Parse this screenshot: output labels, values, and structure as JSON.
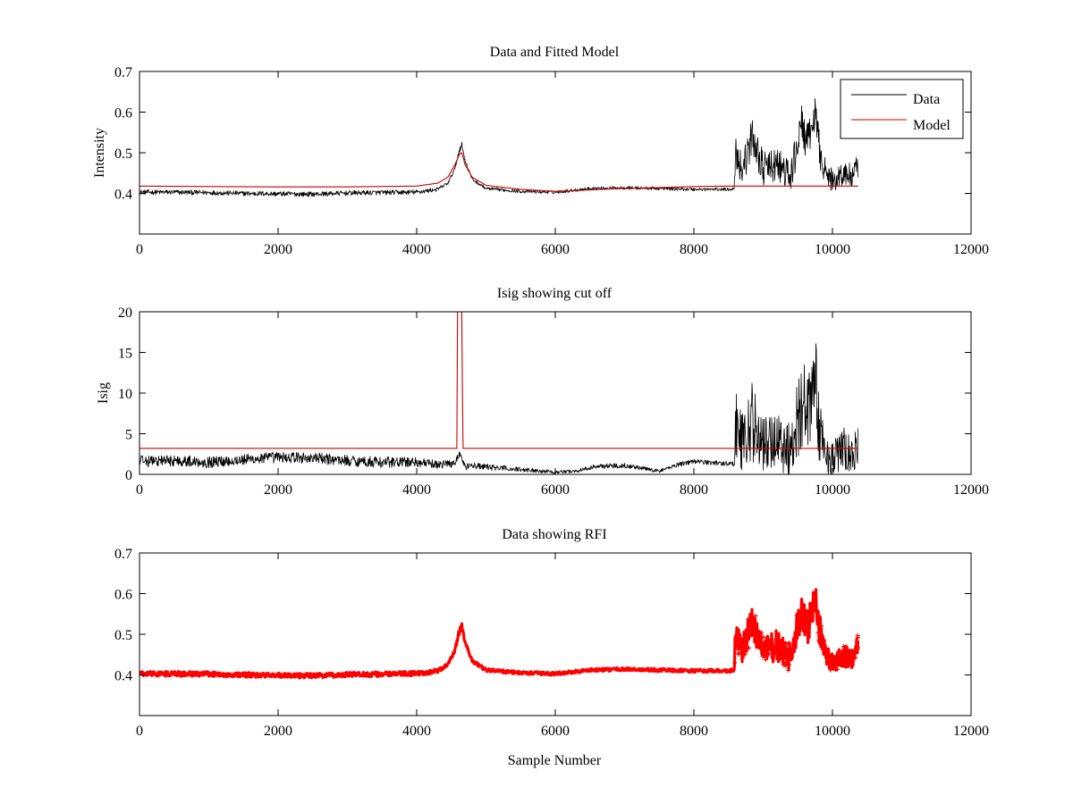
{
  "figure": {
    "background": "#ffffff",
    "colors": {
      "data": "#000000",
      "model": "#cc0000",
      "rfi": "#ff0000"
    }
  },
  "chart_data": [
    {
      "type": "line",
      "title": "Data and Fitted Model",
      "xlabel": "",
      "ylabel": "Intensity",
      "xlim": [
        0,
        12000
      ],
      "ylim": [
        0.3,
        0.7
      ],
      "xticks": [
        "0",
        "2000",
        "4000",
        "6000",
        "8000",
        "10000",
        "12000"
      ],
      "yticks": [
        "0.4",
        "0.5",
        "0.6",
        "0.7"
      ],
      "ytick_values": [
        0.4,
        0.5,
        0.6,
        0.7
      ],
      "grid": false,
      "legend": {
        "position": "top-right",
        "entries": [
          "Data",
          "Model"
        ]
      },
      "series": [
        {
          "name": "Data",
          "color": "#000000",
          "style": "noisy-line",
          "x": [
            0,
            500,
            1000,
            1500,
            2000,
            2500,
            3000,
            3500,
            4000,
            4300,
            4450,
            4550,
            4620,
            4650,
            4700,
            4800,
            5000,
            5500,
            6000,
            6500,
            7000,
            7500,
            8000,
            8500,
            8580,
            8600,
            8700,
            8850,
            9000,
            9200,
            9400,
            9550,
            9650,
            9750,
            9800,
            9900,
            10000,
            10150,
            10300,
            10370
          ],
          "y": [
            0.403,
            0.403,
            0.402,
            0.4,
            0.399,
            0.398,
            0.401,
            0.402,
            0.403,
            0.41,
            0.425,
            0.46,
            0.51,
            0.52,
            0.48,
            0.435,
            0.412,
            0.405,
            0.403,
            0.412,
            0.414,
            0.412,
            0.41,
            0.41,
            0.412,
            0.5,
            0.46,
            0.54,
            0.46,
            0.47,
            0.44,
            0.57,
            0.52,
            0.6,
            0.52,
            0.45,
            0.43,
            0.45,
            0.44,
            0.47
          ],
          "amplitude": [
            0.006,
            0.006,
            0.006,
            0.006,
            0.006,
            0.006,
            0.006,
            0.006,
            0.006,
            0.005,
            0.004,
            0.004,
            0.008,
            0.008,
            0.004,
            0.004,
            0.004,
            0.004,
            0.004,
            0.004,
            0.004,
            0.004,
            0.004,
            0.004,
            0.004,
            0.05,
            0.04,
            0.05,
            0.04,
            0.045,
            0.04,
            0.05,
            0.05,
            0.04,
            0.05,
            0.03,
            0.03,
            0.035,
            0.03,
            0.035
          ]
        },
        {
          "name": "Model",
          "color": "#cc0000",
          "style": "line",
          "x": [
            0,
            1000,
            2000,
            3000,
            4000,
            4300,
            4450,
            4550,
            4620,
            4650,
            4700,
            4800,
            5000,
            5500,
            6000,
            7000,
            8000,
            8500,
            8580,
            9000,
            10000,
            10370
          ],
          "y": [
            0.418,
            0.417,
            0.416,
            0.416,
            0.418,
            0.425,
            0.44,
            0.47,
            0.497,
            0.5,
            0.47,
            0.44,
            0.42,
            0.41,
            0.405,
            0.412,
            0.417,
            0.418,
            0.418,
            0.418,
            0.418,
            0.418
          ]
        }
      ]
    },
    {
      "type": "line",
      "title": "Isig showing cut off",
      "xlabel": "",
      "ylabel": "Isig",
      "xlim": [
        0,
        12000
      ],
      "ylim": [
        0,
        20
      ],
      "xticks": [
        "0",
        "2000",
        "4000",
        "6000",
        "8000",
        "10000",
        "12000"
      ],
      "yticks": [
        "0",
        "5",
        "10",
        "15",
        "20"
      ],
      "ytick_values": [
        0,
        5,
        10,
        15,
        20
      ],
      "grid": false,
      "series": [
        {
          "color": "#000000",
          "style": "noisy-line",
          "x": [
            0,
            500,
            1000,
            1500,
            2000,
            2500,
            3000,
            3500,
            4000,
            4300,
            4550,
            4620,
            4700,
            4800,
            5000,
            5500,
            6000,
            6300,
            6600,
            7000,
            7500,
            7800,
            8000,
            8500,
            8580,
            8600,
            8700,
            8850,
            9000,
            9200,
            9400,
            9550,
            9650,
            9750,
            9800,
            9900,
            10000,
            10150,
            10300,
            10370
          ],
          "y": [
            1.6,
            1.7,
            1.5,
            1.8,
            2.1,
            2.0,
            1.7,
            1.5,
            1.5,
            1.2,
            1.4,
            2.6,
            0.9,
            1.1,
            0.9,
            0.6,
            0.3,
            0.4,
            1.0,
            1.1,
            0.4,
            1.3,
            1.6,
            1.3,
            1.3,
            6.0,
            4.0,
            6.5,
            3.5,
            4.5,
            3.0,
            9.0,
            7.0,
            13.0,
            6.0,
            2.5,
            2.0,
            3.0,
            2.0,
            4.0
          ],
          "amplitude": [
            0.7,
            0.7,
            0.7,
            0.7,
            0.7,
            0.7,
            0.7,
            0.7,
            0.6,
            0.5,
            0.5,
            0.4,
            0.4,
            0.4,
            0.4,
            0.3,
            0.2,
            0.2,
            0.3,
            0.3,
            0.2,
            0.3,
            0.3,
            0.3,
            0.3,
            5.0,
            4.0,
            5.0,
            3.5,
            4.0,
            3.5,
            6.0,
            5.0,
            5.0,
            4.5,
            2.5,
            2.0,
            3.0,
            2.0,
            3.0
          ]
        },
        {
          "color": "#cc0000",
          "style": "line",
          "x": [
            0,
            4580,
            4590,
            4600,
            4610,
            4620,
            4640,
            4650,
            4660,
            4670,
            4680,
            10370
          ],
          "y": [
            3.2,
            3.2,
            20,
            20,
            20,
            20,
            20,
            20,
            11,
            3.2,
            3.2,
            3.2
          ]
        }
      ]
    },
    {
      "type": "scatter",
      "title": "Data showing RFI",
      "xlabel": "Sample Number",
      "ylabel": "",
      "xlim": [
        0,
        12000
      ],
      "ylim": [
        0.3,
        0.7
      ],
      "xticks": [
        "0",
        "2000",
        "4000",
        "6000",
        "8000",
        "10000",
        "12000"
      ],
      "yticks": [
        "0.4",
        "0.5",
        "0.6",
        "0.7"
      ],
      "ytick_values": [
        0.4,
        0.5,
        0.6,
        0.7
      ],
      "grid": false,
      "series": [
        {
          "color": "#ff0000",
          "style": "dense-markers",
          "x": [
            0,
            500,
            1000,
            1500,
            2000,
            2500,
            3000,
            3500,
            4000,
            4300,
            4450,
            4550,
            4620,
            4650,
            4700,
            4800,
            5000,
            5500,
            6000,
            6500,
            7000,
            7500,
            8000,
            8500,
            8580,
            8600,
            8700,
            8850,
            9000,
            9200,
            9400,
            9550,
            9650,
            9750,
            9800,
            9900,
            10000,
            10150,
            10300,
            10370
          ],
          "y": [
            0.403,
            0.403,
            0.402,
            0.4,
            0.399,
            0.398,
            0.401,
            0.402,
            0.403,
            0.41,
            0.425,
            0.46,
            0.51,
            0.52,
            0.48,
            0.435,
            0.412,
            0.405,
            0.403,
            0.412,
            0.414,
            0.412,
            0.41,
            0.41,
            0.412,
            0.49,
            0.46,
            0.53,
            0.46,
            0.47,
            0.44,
            0.56,
            0.52,
            0.59,
            0.52,
            0.45,
            0.43,
            0.45,
            0.44,
            0.47
          ],
          "amplitude": [
            0.006,
            0.006,
            0.006,
            0.006,
            0.006,
            0.006,
            0.006,
            0.006,
            0.006,
            0.005,
            0.004,
            0.004,
            0.008,
            0.008,
            0.004,
            0.004,
            0.004,
            0.004,
            0.004,
            0.004,
            0.004,
            0.004,
            0.004,
            0.004,
            0.004,
            0.04,
            0.035,
            0.045,
            0.035,
            0.04,
            0.035,
            0.045,
            0.045,
            0.035,
            0.045,
            0.025,
            0.025,
            0.03,
            0.025,
            0.03
          ]
        }
      ]
    }
  ]
}
